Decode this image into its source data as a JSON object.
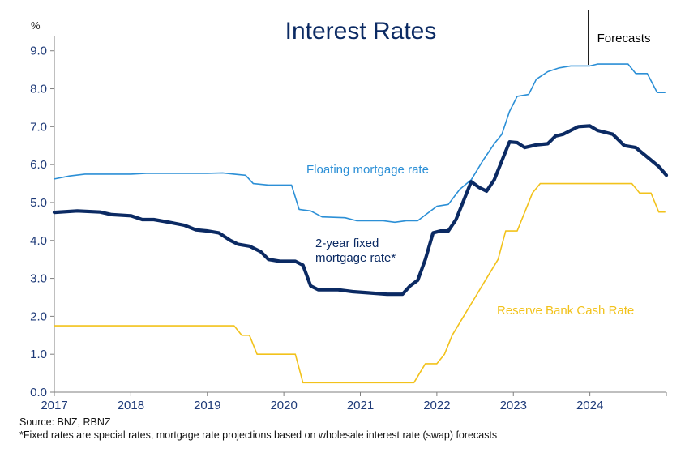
{
  "chart_data": {
    "type": "line",
    "title": "Interest Rates",
    "yunit": "%",
    "ylim": [
      0,
      9.4
    ],
    "yticks": [
      "0.0",
      "1.0",
      "2.0",
      "3.0",
      "4.0",
      "5.0",
      "6.0",
      "7.0",
      "8.0",
      "9.0"
    ],
    "xlim": [
      2017,
      2025
    ],
    "xticks": [
      "2017",
      "2018",
      "2019",
      "2020",
      "2021",
      "2022",
      "2023",
      "2024"
    ],
    "forecast_start": 2024.0,
    "forecast_label": "Forecasts",
    "grid": false,
    "series": [
      {
        "name": "Floating mortgage rate",
        "color": "#2b8fd6",
        "points": [
          [
            2017.0,
            5.62
          ],
          [
            2017.2,
            5.7
          ],
          [
            2017.4,
            5.75
          ],
          [
            2017.6,
            5.75
          ],
          [
            2017.8,
            5.75
          ],
          [
            2018.0,
            5.75
          ],
          [
            2018.2,
            5.77
          ],
          [
            2018.4,
            5.77
          ],
          [
            2018.6,
            5.77
          ],
          [
            2018.8,
            5.77
          ],
          [
            2019.0,
            5.77
          ],
          [
            2019.2,
            5.78
          ],
          [
            2019.35,
            5.75
          ],
          [
            2019.5,
            5.72
          ],
          [
            2019.6,
            5.5
          ],
          [
            2019.8,
            5.46
          ],
          [
            2020.1,
            5.46
          ],
          [
            2020.2,
            4.82
          ],
          [
            2020.35,
            4.78
          ],
          [
            2020.5,
            4.62
          ],
          [
            2020.8,
            4.6
          ],
          [
            2020.95,
            4.52
          ],
          [
            2021.3,
            4.52
          ],
          [
            2021.45,
            4.48
          ],
          [
            2021.6,
            4.52
          ],
          [
            2021.75,
            4.52
          ],
          [
            2021.9,
            4.75
          ],
          [
            2022.0,
            4.9
          ],
          [
            2022.15,
            4.95
          ],
          [
            2022.3,
            5.35
          ],
          [
            2022.45,
            5.6
          ],
          [
            2022.6,
            6.1
          ],
          [
            2022.75,
            6.55
          ],
          [
            2022.85,
            6.8
          ],
          [
            2022.95,
            7.4
          ],
          [
            2023.05,
            7.8
          ],
          [
            2023.2,
            7.85
          ],
          [
            2023.3,
            8.25
          ],
          [
            2023.45,
            8.45
          ],
          [
            2023.6,
            8.55
          ],
          [
            2023.75,
            8.6
          ],
          [
            2024.0,
            8.6
          ],
          [
            2024.1,
            8.65
          ],
          [
            2024.5,
            8.65
          ],
          [
            2024.6,
            8.4
          ],
          [
            2024.75,
            8.4
          ],
          [
            2024.88,
            7.9
          ],
          [
            2024.98,
            7.9
          ]
        ]
      },
      {
        "name": "2-year fixed mortgage rate*",
        "label_lines": [
          "2-year fixed",
          "mortgage rate*"
        ],
        "color": "#0b2a63",
        "points": [
          [
            2017.0,
            4.74
          ],
          [
            2017.3,
            4.78
          ],
          [
            2017.6,
            4.75
          ],
          [
            2017.75,
            4.68
          ],
          [
            2018.0,
            4.65
          ],
          [
            2018.15,
            4.55
          ],
          [
            2018.3,
            4.55
          ],
          [
            2018.5,
            4.48
          ],
          [
            2018.7,
            4.4
          ],
          [
            2018.85,
            4.28
          ],
          [
            2019.0,
            4.25
          ],
          [
            2019.15,
            4.2
          ],
          [
            2019.3,
            4.0
          ],
          [
            2019.4,
            3.9
          ],
          [
            2019.55,
            3.85
          ],
          [
            2019.7,
            3.7
          ],
          [
            2019.8,
            3.5
          ],
          [
            2019.95,
            3.45
          ],
          [
            2020.15,
            3.45
          ],
          [
            2020.25,
            3.35
          ],
          [
            2020.35,
            2.8
          ],
          [
            2020.45,
            2.7
          ],
          [
            2020.7,
            2.7
          ],
          [
            2020.9,
            2.65
          ],
          [
            2021.1,
            2.62
          ],
          [
            2021.35,
            2.58
          ],
          [
            2021.55,
            2.58
          ],
          [
            2021.65,
            2.8
          ],
          [
            2021.75,
            2.95
          ],
          [
            2021.85,
            3.5
          ],
          [
            2021.95,
            4.2
          ],
          [
            2022.05,
            4.25
          ],
          [
            2022.15,
            4.25
          ],
          [
            2022.25,
            4.55
          ],
          [
            2022.35,
            5.05
          ],
          [
            2022.45,
            5.55
          ],
          [
            2022.55,
            5.4
          ],
          [
            2022.65,
            5.3
          ],
          [
            2022.75,
            5.6
          ],
          [
            2022.85,
            6.1
          ],
          [
            2022.95,
            6.6
          ],
          [
            2023.05,
            6.58
          ],
          [
            2023.15,
            6.45
          ],
          [
            2023.3,
            6.52
          ],
          [
            2023.45,
            6.55
          ],
          [
            2023.55,
            6.75
          ],
          [
            2023.65,
            6.8
          ],
          [
            2023.75,
            6.9
          ],
          [
            2023.85,
            7.0
          ],
          [
            2024.0,
            7.02
          ],
          [
            2024.1,
            6.9
          ],
          [
            2024.3,
            6.8
          ],
          [
            2024.45,
            6.5
          ],
          [
            2024.6,
            6.45
          ],
          [
            2024.75,
            6.2
          ],
          [
            2024.9,
            5.95
          ],
          [
            2025.0,
            5.72
          ]
        ]
      },
      {
        "name": "Reserve Bank Cash Rate",
        "color": "#f2c21b",
        "points": [
          [
            2017.0,
            1.75
          ],
          [
            2019.35,
            1.75
          ],
          [
            2019.45,
            1.5
          ],
          [
            2019.55,
            1.5
          ],
          [
            2019.65,
            1.0
          ],
          [
            2020.15,
            1.0
          ],
          [
            2020.25,
            0.25
          ],
          [
            2021.7,
            0.25
          ],
          [
            2021.85,
            0.75
          ],
          [
            2022.0,
            0.75
          ],
          [
            2022.1,
            1.0
          ],
          [
            2022.2,
            1.5
          ],
          [
            2022.35,
            2.0
          ],
          [
            2022.5,
            2.5
          ],
          [
            2022.65,
            3.0
          ],
          [
            2022.8,
            3.5
          ],
          [
            2022.9,
            4.25
          ],
          [
            2023.05,
            4.25
          ],
          [
            2023.15,
            4.75
          ],
          [
            2023.25,
            5.25
          ],
          [
            2023.35,
            5.5
          ],
          [
            2024.55,
            5.5
          ],
          [
            2024.65,
            5.25
          ],
          [
            2024.8,
            5.25
          ],
          [
            2024.9,
            4.75
          ],
          [
            2024.98,
            4.75
          ]
        ]
      }
    ]
  },
  "footnotes": {
    "source": "Source: BNZ, RBNZ",
    "note": "*Fixed rates are special rates, mortgage rate projections based on wholesale interest rate (swap) forecasts"
  }
}
